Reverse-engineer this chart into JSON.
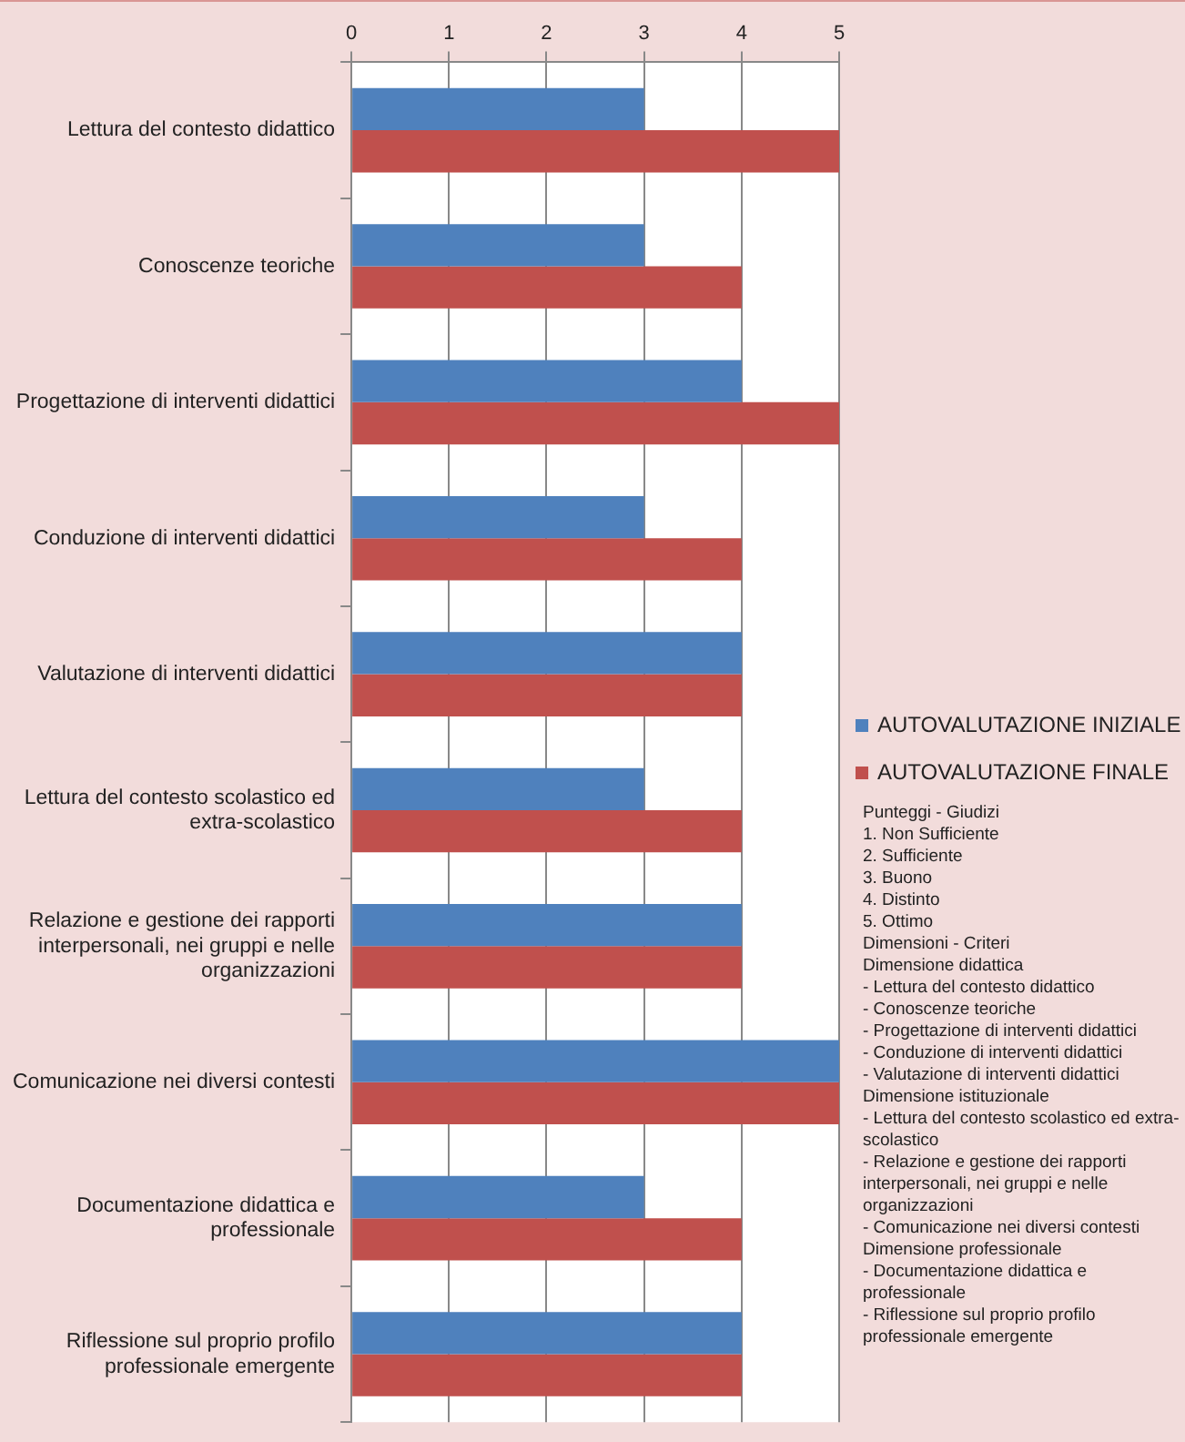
{
  "chart_data": {
    "type": "bar",
    "orientation": "horizontal",
    "categories": [
      "Lettura del contesto didattico",
      "Conoscenze teoriche",
      "Progettazione di interventi didattici",
      "Conduzione di interventi didattici",
      "Valutazione di interventi didattici",
      "Lettura del contesto scolastico ed extra-scolastico",
      "Relazione e gestione dei rapporti interpersonali, nei gruppi e nelle organizzazioni",
      "Comunicazione nei diversi contesti",
      "Documentazione didattica e professionale",
      "Riflessione sul proprio profilo professionale emergente"
    ],
    "series": [
      {
        "name": "AUTOVALUTAZIONE INIZIALE",
        "color": "#4f81bd",
        "values": [
          3,
          3,
          4,
          3,
          4,
          3,
          4,
          5,
          3,
          4
        ]
      },
      {
        "name": "AUTOVALUTAZIONE FINALE",
        "color": "#c0504d",
        "values": [
          5,
          4,
          5,
          4,
          4,
          4,
          4,
          5,
          4,
          4
        ]
      }
    ],
    "xlim": [
      0,
      5
    ],
    "xticks": [
      0,
      1,
      2,
      3,
      4,
      5
    ],
    "grid": "x",
    "legend": "right",
    "annotations": [
      "Punteggi - Giudizi",
      "1. Non Sufficiente",
      "2. Sufficiente",
      "3. Buono",
      "4. Distinto",
      "5. Ottimo",
      "Dimensioni - Criteri",
      "Dimensione didattica",
      "- Lettura del contesto didattico",
      "- Conoscenze teoriche",
      "- Progettazione di interventi didattici",
      "- Conduzione di interventi didattici",
      "- Valutazione di interventi didattici",
      "Dimensione istituzionale",
      "- Lettura del contesto scolastico ed extra-scolastico",
      "- Relazione e gestione dei rapporti interpersonali, nei gruppi e nelle organizzazioni",
      "- Comunicazione nei diversi contesti",
      "Dimensione professionale",
      "- Documentazione didattica e professionale",
      "- Riflessione sul proprio profilo professionale emergente"
    ]
  }
}
